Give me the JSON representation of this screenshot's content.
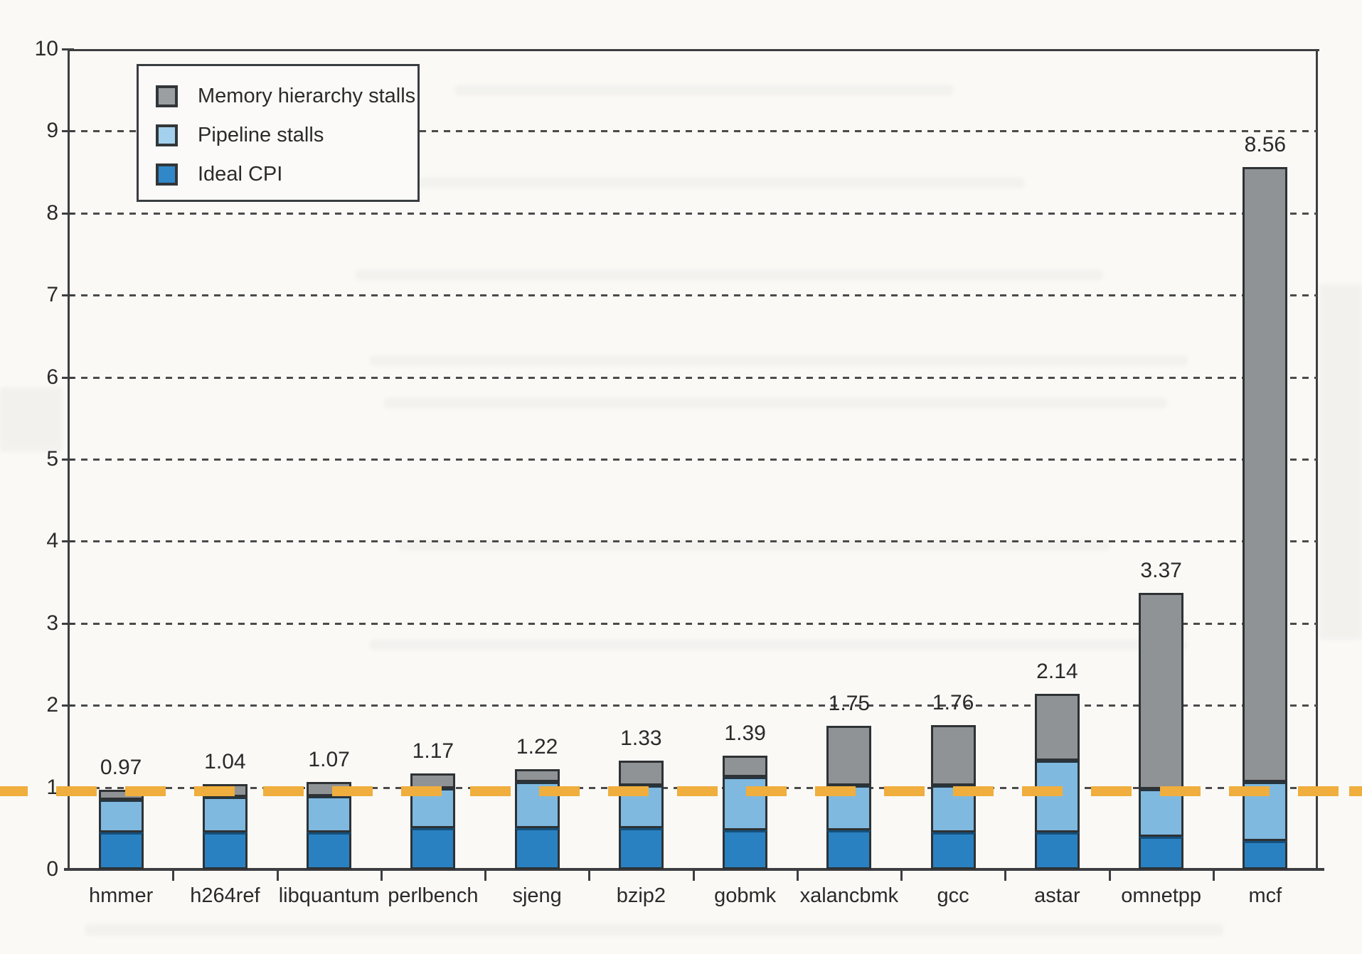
{
  "chart_data": {
    "type": "bar",
    "stacked": true,
    "title": "",
    "xlabel": "",
    "ylabel": "",
    "ylim": [
      0,
      10
    ],
    "yticks": [
      0,
      1,
      2,
      3,
      4,
      5,
      6,
      7,
      8,
      9,
      10
    ],
    "grid": "horizontal dashed gridlines at y=1 through y=9",
    "legend_position": "top-left inside plot",
    "categories": [
      "hmmer",
      "h264ref",
      "libquantum",
      "perlbench",
      "sjeng",
      "bzip2",
      "gobmk",
      "xalancbmk",
      "gcc",
      "astar",
      "omnetpp",
      "mcf"
    ],
    "series": [
      {
        "name": "Ideal CPI",
        "color": "#2a81c2",
        "values": [
          0.45,
          0.45,
          0.45,
          0.5,
          0.5,
          0.5,
          0.48,
          0.48,
          0.45,
          0.45,
          0.4,
          0.35
        ]
      },
      {
        "name": "Pipeline stalls",
        "color": "#7fb9e0",
        "values": [
          0.4,
          0.43,
          0.44,
          0.49,
          0.57,
          0.52,
          0.65,
          0.54,
          0.57,
          0.88,
          0.58,
          0.72
        ]
      },
      {
        "name": "Memory hierarchy stalls",
        "color": "#8f9396",
        "values": [
          0.12,
          0.16,
          0.18,
          0.18,
          0.15,
          0.31,
          0.26,
          0.73,
          0.74,
          0.81,
          2.39,
          7.49
        ]
      }
    ],
    "totals": [
      0.97,
      1.04,
      1.07,
      1.17,
      1.22,
      1.33,
      1.39,
      1.75,
      1.76,
      2.14,
      3.37,
      8.56
    ],
    "total_labels": [
      "0.97",
      "1.04",
      "1.07",
      "1.17",
      "1.22",
      "1.33",
      "1.39",
      "1.75",
      "1.76",
      "2.14",
      "3.37",
      "8.56"
    ],
    "annotation_line": {
      "type": "dashed",
      "y_value": 1,
      "color": "#efae3d",
      "spans_full_width": true
    }
  },
  "legend": {
    "items": [
      {
        "label": "Memory hierarchy stalls",
        "color": "#9b9fa2"
      },
      {
        "label": "Pipeline stalls",
        "color": "#a3d0ec"
      },
      {
        "label": "Ideal CPI",
        "color": "#3188c8"
      }
    ]
  },
  "colors": {
    "paper_background": "#faf9f6",
    "axis": "#3c3e40",
    "gridline": "#4b4b4b",
    "bar_outline": "#2e3234",
    "ideal_cpi": "#2a81c2",
    "pipeline_stalls": "#7fb9e0",
    "memory_stalls": "#8f9396",
    "annotation_orange": "#efae3d",
    "text": "#2b2b2b"
  }
}
